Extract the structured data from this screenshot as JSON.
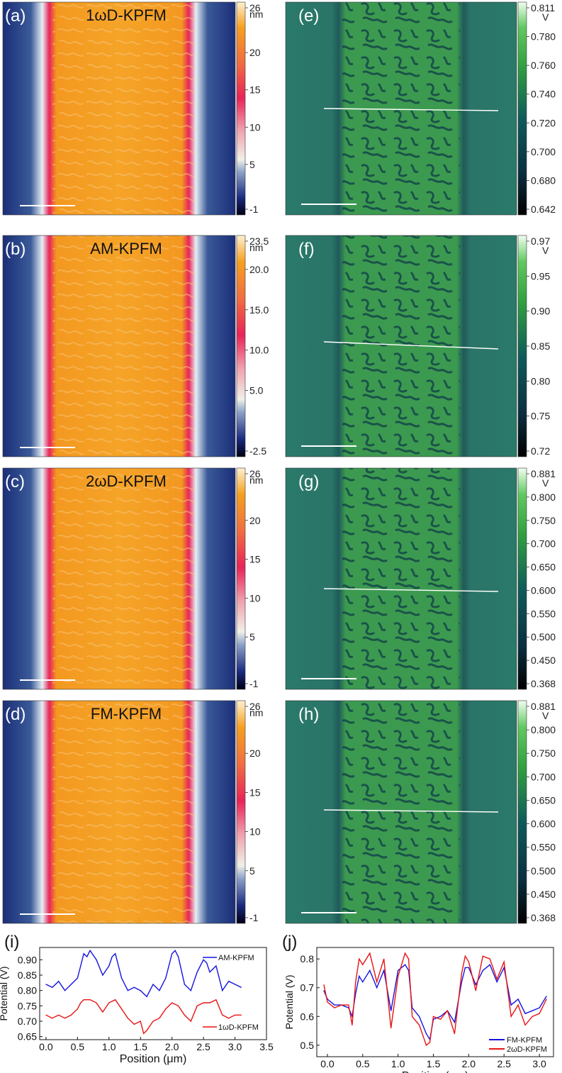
{
  "topography_panels": [
    {
      "label": "(a)",
      "title": "1ωD-KPFM",
      "unit": "nm",
      "ticks": [
        "26",
        "20",
        "15",
        "10",
        "5",
        "-1"
      ],
      "tick_values": [
        26,
        20,
        15,
        10,
        5,
        -1
      ],
      "min": -1,
      "max": 26
    },
    {
      "label": "(b)",
      "title": "AM-KPFM",
      "unit": "nm",
      "ticks": [
        "23.5",
        "20.0",
        "15.0",
        "10.0",
        "5.0",
        "-2.5"
      ],
      "tick_values": [
        23.5,
        20,
        15,
        10,
        5,
        -2.5
      ],
      "min": -2.5,
      "max": 23.5
    },
    {
      "label": "(c)",
      "title": "2ωD-KPFM",
      "unit": "nm",
      "ticks": [
        "26",
        "20",
        "15",
        "10",
        "5",
        "-1"
      ],
      "tick_values": [
        26,
        20,
        15,
        10,
        5,
        -1
      ],
      "min": -1,
      "max": 26
    },
    {
      "label": "(d)",
      "title": "FM-KPFM",
      "unit": "nm",
      "ticks": [
        "26",
        "20",
        "15",
        "10",
        "5",
        "-1"
      ],
      "tick_values": [
        26,
        20,
        15,
        10,
        5,
        -1
      ],
      "min": -1,
      "max": 26
    }
  ],
  "potential_panels": [
    {
      "label": "(e)",
      "unit": "V",
      "ticks": [
        "0.811",
        "0.780",
        "0.760",
        "0.740",
        "0.720",
        "0.700",
        "0.680",
        "0.642"
      ],
      "tick_values": [
        0.811,
        0.78,
        0.76,
        0.74,
        0.72,
        0.7,
        0.68,
        0.642
      ],
      "min": 0.642,
      "max": 0.811
    },
    {
      "label": "(f)",
      "unit": "V",
      "ticks": [
        "0.97",
        "0.95",
        "0.90",
        "0.85",
        "0.80",
        "0.75",
        "0.72"
      ],
      "tick_values": [
        0.97,
        0.95,
        0.9,
        0.85,
        0.8,
        0.75,
        0.72
      ],
      "min": 0.72,
      "max": 0.97
    },
    {
      "label": "(g)",
      "unit": "V",
      "ticks": [
        "0.881",
        "0.800",
        "0.750",
        "0.700",
        "0.650",
        "0.600",
        "0.550",
        "0.500",
        "0.450",
        "0.368"
      ],
      "tick_values": [
        0.881,
        0.8,
        0.75,
        0.7,
        0.65,
        0.6,
        0.55,
        0.5,
        0.45,
        0.368
      ],
      "min": 0.368,
      "max": 0.881
    },
    {
      "label": "(h)",
      "unit": "V",
      "ticks": [
        "0.881",
        "0.800",
        "0.750",
        "0.700",
        "0.650",
        "0.600",
        "0.550",
        "0.500",
        "0.450",
        "0.368"
      ],
      "tick_values": [
        0.881,
        0.8,
        0.75,
        0.7,
        0.65,
        0.6,
        0.55,
        0.5,
        0.45,
        0.368
      ],
      "min": 0.368,
      "max": 0.881
    }
  ],
  "colors": {
    "topo_low": "#0b1a5a",
    "topo_mid": "#d8e0e8",
    "topo_edge": "#e8245a",
    "topo_high": "#f5a020",
    "pot_low": "#06141c",
    "pot_mid": "#1e6e6a",
    "pot_high": "#c8f5b8",
    "line_blue": "#1414e0",
    "line_red": "#e81414"
  },
  "chart_data": [
    {
      "type": "line",
      "panel_label": "(i)",
      "xlabel": "Position (μm)",
      "ylabel": "Potential (V)",
      "xlim": [
        -0.1,
        3.5
      ],
      "ylim": [
        0.64,
        0.94
      ],
      "xticks": [
        "0.0",
        "0.5",
        "1.0",
        "1.5",
        "2.0",
        "2.5",
        "3.0",
        "3.5"
      ],
      "xtick_values": [
        0,
        0.5,
        1,
        1.5,
        2,
        2.5,
        3,
        3.5
      ],
      "yticks": [
        "0.65",
        "0.70",
        "0.75",
        "0.80",
        "0.85",
        "0.90"
      ],
      "ytick_values": [
        0.65,
        0.7,
        0.75,
        0.8,
        0.85,
        0.9
      ],
      "series": [
        {
          "name": "AM-KPFM",
          "color": "#1414e0",
          "x": [
            0,
            0.1,
            0.2,
            0.3,
            0.4,
            0.5,
            0.55,
            0.6,
            0.65,
            0.7,
            0.8,
            0.9,
            1.0,
            1.05,
            1.1,
            1.2,
            1.3,
            1.4,
            1.5,
            1.6,
            1.7,
            1.8,
            1.9,
            2.0,
            2.05,
            2.1,
            2.2,
            2.3,
            2.4,
            2.5,
            2.55,
            2.6,
            2.7,
            2.8,
            2.9,
            3.0,
            3.1
          ],
          "values": [
            0.82,
            0.81,
            0.83,
            0.8,
            0.82,
            0.84,
            0.88,
            0.92,
            0.91,
            0.93,
            0.9,
            0.85,
            0.88,
            0.91,
            0.92,
            0.84,
            0.8,
            0.81,
            0.8,
            0.78,
            0.82,
            0.8,
            0.84,
            0.92,
            0.93,
            0.91,
            0.82,
            0.8,
            0.86,
            0.9,
            0.89,
            0.86,
            0.88,
            0.8,
            0.83,
            0.82,
            0.81
          ]
        },
        {
          "name": "1ωD-KPFM",
          "color": "#e81414",
          "x": [
            0,
            0.1,
            0.2,
            0.3,
            0.4,
            0.5,
            0.55,
            0.6,
            0.7,
            0.8,
            0.9,
            1.0,
            1.1,
            1.2,
            1.3,
            1.4,
            1.5,
            1.55,
            1.6,
            1.7,
            1.8,
            1.9,
            2.0,
            2.1,
            2.2,
            2.3,
            2.4,
            2.5,
            2.6,
            2.7,
            2.8,
            2.9,
            3.0,
            3.1
          ],
          "values": [
            0.72,
            0.71,
            0.72,
            0.71,
            0.72,
            0.74,
            0.76,
            0.77,
            0.77,
            0.76,
            0.73,
            0.76,
            0.77,
            0.74,
            0.71,
            0.69,
            0.7,
            0.66,
            0.67,
            0.7,
            0.71,
            0.74,
            0.76,
            0.75,
            0.72,
            0.7,
            0.75,
            0.76,
            0.76,
            0.77,
            0.72,
            0.71,
            0.72,
            0.72
          ]
        }
      ],
      "legend": "right"
    },
    {
      "type": "line",
      "panel_label": "(j)",
      "xlabel": "Position (μm)",
      "ylabel": "Potential (V)",
      "xlim": [
        -0.15,
        3.2
      ],
      "ylim": [
        0.46,
        0.84
      ],
      "xticks": [
        "0.0",
        "0.5",
        "1.0",
        "1.5",
        "2.0",
        "2.5",
        "3.0"
      ],
      "xtick_values": [
        0,
        0.5,
        1,
        1.5,
        2,
        2.5,
        3
      ],
      "yticks": [
        "0.5",
        "0.6",
        "0.7",
        "0.8"
      ],
      "ytick_values": [
        0.5,
        0.6,
        0.7,
        0.8
      ],
      "series": [
        {
          "name": "FM-KPFM",
          "color": "#1414e0",
          "x": [
            -0.05,
            0,
            0.1,
            0.2,
            0.3,
            0.35,
            0.4,
            0.45,
            0.5,
            0.6,
            0.7,
            0.8,
            0.9,
            1.0,
            1.1,
            1.15,
            1.2,
            1.3,
            1.4,
            1.45,
            1.5,
            1.6,
            1.7,
            1.8,
            1.9,
            1.95,
            2.0,
            2.1,
            2.2,
            2.3,
            2.4,
            2.5,
            2.6,
            2.7,
            2.8,
            2.9,
            3.0,
            3.1
          ],
          "values": [
            0.69,
            0.66,
            0.64,
            0.64,
            0.63,
            0.6,
            0.68,
            0.74,
            0.72,
            0.76,
            0.7,
            0.76,
            0.62,
            0.76,
            0.78,
            0.76,
            0.63,
            0.6,
            0.54,
            0.52,
            0.59,
            0.6,
            0.62,
            0.58,
            0.72,
            0.77,
            0.77,
            0.71,
            0.76,
            0.78,
            0.72,
            0.77,
            0.64,
            0.66,
            0.61,
            0.62,
            0.63,
            0.67
          ]
        },
        {
          "name": "2ωD-KPFM",
          "color": "#e81414",
          "x": [
            -0.05,
            0,
            0.1,
            0.2,
            0.3,
            0.35,
            0.4,
            0.45,
            0.5,
            0.6,
            0.7,
            0.8,
            0.9,
            1.0,
            1.1,
            1.15,
            1.2,
            1.3,
            1.4,
            1.45,
            1.5,
            1.6,
            1.7,
            1.8,
            1.9,
            1.95,
            2.0,
            2.1,
            2.2,
            2.3,
            2.4,
            2.5,
            2.6,
            2.7,
            2.8,
            2.9,
            3.0,
            3.1
          ],
          "values": [
            0.71,
            0.65,
            0.63,
            0.64,
            0.64,
            0.57,
            0.72,
            0.8,
            0.78,
            0.82,
            0.72,
            0.8,
            0.56,
            0.74,
            0.82,
            0.8,
            0.6,
            0.57,
            0.5,
            0.51,
            0.6,
            0.59,
            0.62,
            0.54,
            0.75,
            0.81,
            0.79,
            0.69,
            0.81,
            0.8,
            0.73,
            0.79,
            0.6,
            0.64,
            0.57,
            0.6,
            0.61,
            0.66
          ]
        }
      ],
      "legend": "bottom-right"
    }
  ]
}
